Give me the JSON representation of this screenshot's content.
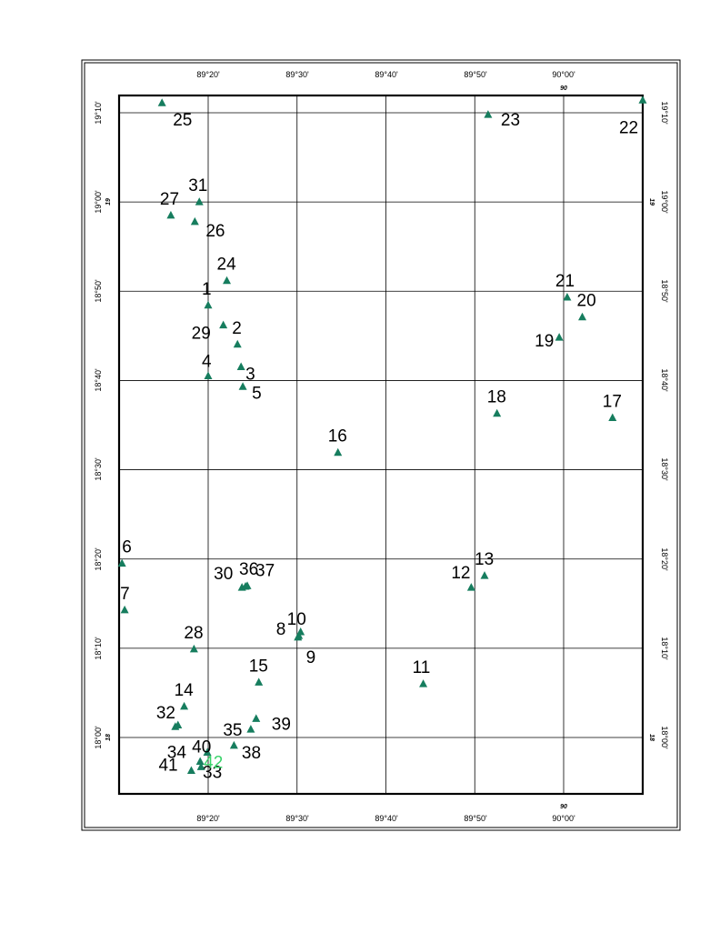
{
  "map": {
    "lon_ticks_top": [
      "89°20'",
      "89°30'",
      "89°40'",
      "89°50'",
      "90°00'"
    ],
    "lon_ticks_bottom": [
      "89°20'",
      "89°30'",
      "89°40'",
      "89°50'",
      "90°00'"
    ],
    "lat_ticks_left": [
      "19°10'",
      "19°00'",
      "18°50'",
      "18°40'",
      "18°30'",
      "18°20'",
      "18°10'",
      "18°00'"
    ],
    "lat_ticks_right": [
      "19°10'",
      "19°00'",
      "18°50'",
      "18°40'",
      "18°30'",
      "18°20'",
      "18°10'",
      "18°00'"
    ],
    "degree_marks": {
      "top": "90",
      "bottom": "90",
      "left": [
        "19",
        "18"
      ],
      "right": [
        "19",
        "18"
      ]
    },
    "colors": {
      "marker": "#167d5e",
      "highlight_label": "#39d36a",
      "grid": "#000000"
    },
    "marker_icon": "triangle-marker-icon",
    "stations": [
      {
        "label": "1",
        "lon": 89.3333,
        "lat": 18.807
      },
      {
        "label": "2",
        "lon": 89.3883,
        "lat": 18.734
      },
      {
        "label": "3",
        "lon": 89.395,
        "lat": 18.692
      },
      {
        "label": "4",
        "lon": 89.3333,
        "lat": 18.675
      },
      {
        "label": "5",
        "lon": 89.3983,
        "lat": 18.655
      },
      {
        "label": "6",
        "lon": 89.1717,
        "lat": 18.325
      },
      {
        "label": "7",
        "lon": 89.1767,
        "lat": 18.238
      },
      {
        "label": "8",
        "lon": 89.5017,
        "lat": 18.187
      },
      {
        "label": "9",
        "lon": 89.5033,
        "lat": 18.19
      },
      {
        "label": "10",
        "lon": 89.5067,
        "lat": 18.197
      },
      {
        "label": "11",
        "lon": 89.7367,
        "lat": 18.1
      },
      {
        "label": "12",
        "lon": 89.8267,
        "lat": 18.28
      },
      {
        "label": "13",
        "lon": 89.8517,
        "lat": 18.302
      },
      {
        "label": "14",
        "lon": 89.2883,
        "lat": 18.058
      },
      {
        "label": "15",
        "lon": 89.4283,
        "lat": 18.103
      },
      {
        "label": "16",
        "lon": 89.5767,
        "lat": 18.532
      },
      {
        "label": "17",
        "lon": 90.0917,
        "lat": 18.597
      },
      {
        "label": "18",
        "lon": 89.875,
        "lat": 18.605
      },
      {
        "label": "19",
        "lon": 89.9917,
        "lat": 18.747
      },
      {
        "label": "20",
        "lon": 90.035,
        "lat": 18.785
      },
      {
        "label": "21",
        "lon": 90.0067,
        "lat": 18.822
      },
      {
        "label": "22",
        "lon": 90.1483,
        "lat": 19.19
      },
      {
        "label": "23",
        "lon": 89.8583,
        "lat": 19.163
      },
      {
        "label": "24",
        "lon": 89.3683,
        "lat": 18.853
      },
      {
        "label": "25",
        "lon": 89.2467,
        "lat": 19.185
      },
      {
        "label": "26",
        "lon": 89.3083,
        "lat": 18.963
      },
      {
        "label": "27",
        "lon": 89.2633,
        "lat": 18.975
      },
      {
        "label": "28",
        "lon": 89.3067,
        "lat": 18.165
      },
      {
        "label": "29",
        "lon": 89.3617,
        "lat": 18.77
      },
      {
        "label": "30",
        "lon": 89.3967,
        "lat": 18.28
      },
      {
        "label": "31",
        "lon": 89.3167,
        "lat": 19.0
      },
      {
        "label": "32",
        "lon": 89.2717,
        "lat": 18.02
      },
      {
        "label": "33",
        "lon": 89.3317,
        "lat": 17.972
      },
      {
        "label": "34",
        "lon": 89.2767,
        "lat": 18.023
      },
      {
        "label": "35",
        "lon": 89.3817,
        "lat": 17.985
      },
      {
        "label": "36",
        "lon": 89.4033,
        "lat": 18.282
      },
      {
        "label": "37",
        "lon": 89.4067,
        "lat": 18.283
      },
      {
        "label": "38",
        "lon": 89.4133,
        "lat": 18.015
      },
      {
        "label": "39",
        "lon": 89.4233,
        "lat": 18.035
      },
      {
        "label": "40",
        "lon": 89.3183,
        "lat": 17.955
      },
      {
        "label": "41",
        "lon": 89.3017,
        "lat": 17.938
      },
      {
        "label": "42",
        "lon": 89.32,
        "lat": 17.945
      }
    ]
  }
}
